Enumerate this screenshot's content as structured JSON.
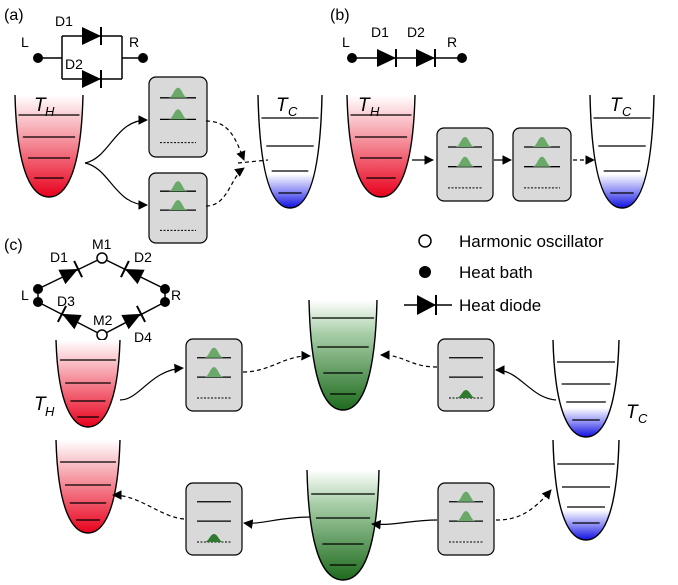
{
  "panels": {
    "a": {
      "tag": "(a)",
      "left": "L",
      "right": "R",
      "d1": "D1",
      "d2": "D2"
    },
    "b": {
      "tag": "(b)",
      "left": "L",
      "right": "R",
      "d1": "D1",
      "d2": "D2"
    },
    "c": {
      "tag": "(c)",
      "left": "L",
      "right": "R",
      "d1": "D1",
      "d2": "D2",
      "d3": "D3",
      "d4": "D4",
      "m1": "M1",
      "m2": "M2"
    }
  },
  "temps": {
    "hot": "T",
    "hot_sub": "H",
    "cold": "T",
    "cold_sub": "C"
  },
  "legend": {
    "oscillator": "Harmonic oscillator",
    "bath": "Heat bath",
    "diode": "Heat diode"
  },
  "colors": {
    "hot": "#e8001c",
    "cold": "#1010e0",
    "mid": "#1e6b1e",
    "box": "#d9d9d9",
    "peak": "#3f8f3f"
  }
}
